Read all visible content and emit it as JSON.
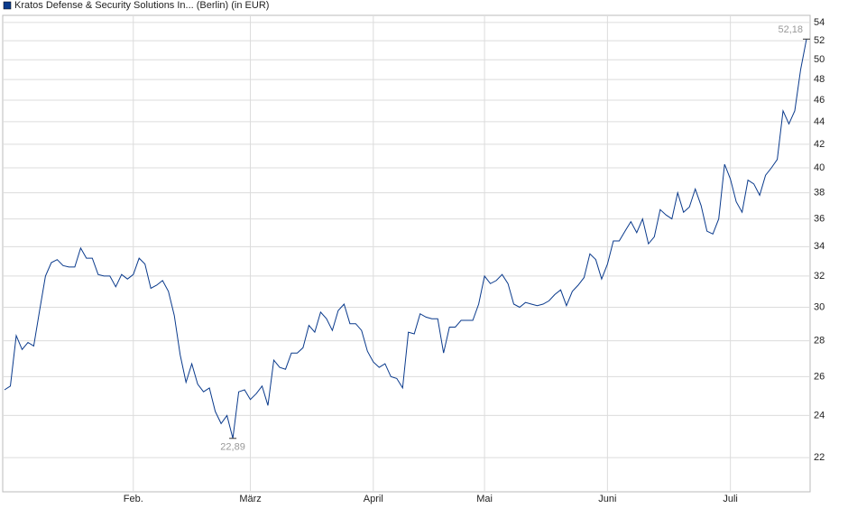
{
  "chart_data": {
    "type": "line",
    "log_scale": true,
    "grid": true,
    "series": [
      {
        "name": "Kratos Defense & Security Solutions In... (Berlin) (in EUR)",
        "color": "#0a3a8c",
        "values": [
          25.3,
          25.5,
          28.3,
          27.5,
          27.9,
          27.7,
          29.8,
          32.0,
          32.9,
          33.1,
          32.7,
          32.6,
          32.6,
          33.9,
          33.2,
          33.2,
          32.1,
          32.0,
          32.0,
          31.3,
          32.1,
          31.8,
          32.1,
          33.2,
          32.8,
          31.2,
          31.4,
          31.7,
          31.0,
          29.5,
          27.2,
          25.7,
          26.7,
          25.6,
          25.2,
          25.4,
          24.2,
          23.6,
          24.0,
          22.89,
          25.2,
          25.3,
          24.8,
          25.1,
          25.5,
          24.5,
          26.9,
          26.5,
          26.4,
          27.3,
          27.3,
          27.6,
          28.9,
          28.5,
          29.7,
          29.3,
          28.6,
          29.8,
          30.2,
          29.0,
          29.0,
          28.6,
          27.4,
          26.8,
          26.5,
          26.7,
          26.0,
          25.9,
          25.4,
          28.5,
          28.4,
          29.6,
          29.4,
          29.3,
          29.3,
          27.3,
          28.8,
          28.8,
          29.2,
          29.2,
          29.2,
          30.2,
          32.0,
          31.5,
          31.7,
          32.1,
          31.5,
          30.2,
          30.0,
          30.3,
          30.2,
          30.1,
          30.2,
          30.4,
          30.8,
          31.1,
          30.1,
          31.0,
          31.4,
          31.9,
          33.5,
          33.1,
          31.8,
          32.8,
          34.4,
          34.4,
          35.1,
          35.8,
          35.0,
          36.0,
          34.2,
          34.7,
          36.7,
          36.3,
          36.0,
          38.0,
          36.5,
          36.9,
          38.3,
          37.0,
          35.1,
          34.9,
          36.0,
          40.3,
          39.1,
          37.3,
          36.5,
          39.0,
          38.7,
          37.8,
          39.4,
          40.0,
          40.7,
          45.0,
          43.8,
          45.0,
          49.0,
          52.18
        ],
        "value_labels": [
          null,
          null,
          null,
          null,
          null,
          null,
          null,
          null,
          null,
          null,
          null,
          null,
          null,
          null,
          null,
          null,
          null,
          null,
          null,
          null,
          null,
          null,
          null,
          null,
          null,
          null,
          null,
          null,
          null,
          null,
          null,
          null,
          null,
          null,
          null,
          null,
          null,
          null,
          null,
          "22,89",
          null,
          null,
          null,
          null,
          null,
          null,
          null,
          null,
          null,
          null,
          null,
          null,
          null,
          null,
          null,
          null,
          null,
          null,
          null,
          null,
          null,
          null,
          null,
          null,
          null,
          null,
          null,
          null,
          null,
          null,
          null,
          null,
          null,
          null,
          null,
          null,
          null,
          null,
          null,
          null,
          null,
          null,
          null,
          null,
          null,
          null,
          null,
          null,
          null,
          null,
          null,
          null,
          null,
          null,
          null,
          null,
          null,
          null,
          null,
          null,
          null,
          null,
          null,
          null,
          null,
          null,
          null,
          null,
          null,
          null,
          null,
          null,
          null,
          null,
          null,
          null,
          null,
          null,
          null,
          null,
          null,
          null,
          null,
          null,
          null,
          null,
          null,
          null,
          null,
          null,
          null,
          null,
          null,
          null,
          null,
          null,
          null,
          "52,18"
        ]
      }
    ],
    "xlim": [
      0,
      137
    ],
    "xticks": [
      {
        "value": 22,
        "label": "Feb."
      },
      {
        "value": 42,
        "label": "März"
      },
      {
        "value": 63,
        "label": "April"
      },
      {
        "value": 82,
        "label": "Mai"
      },
      {
        "value": 103,
        "label": "Juni"
      },
      {
        "value": 124,
        "label": "Juli"
      }
    ],
    "ylim": [
      20.5,
      54.8
    ],
    "yticks": [
      22,
      24,
      26,
      28,
      30,
      32,
      34,
      36,
      38,
      40,
      42,
      44,
      46,
      48,
      50,
      52,
      54
    ]
  }
}
